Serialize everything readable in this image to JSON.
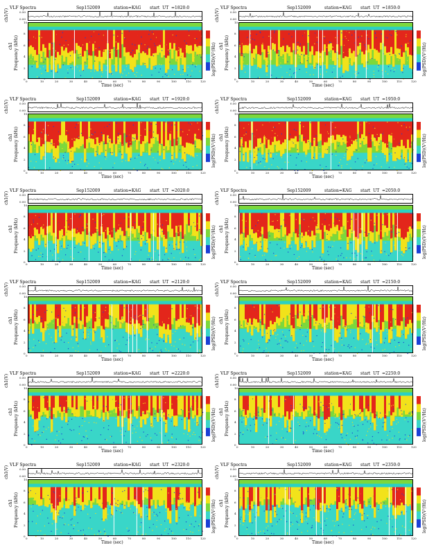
{
  "chart_data": [
    {
      "type": "heatmap",
      "title": "VLF Spectra",
      "date": "Sep152009",
      "station": "station=KAG",
      "start_ut": "start  UT  =1820:0",
      "top_ylabel": "ch1(V)",
      "top_ticks": [
        "0.00",
        "0.50"
      ],
      "ylabel": "Frequency  (kHz)",
      "ylabel_ch": "ch1",
      "xlabel": "Time  (sec)",
      "x_ticks": [
        "0",
        "10",
        "20",
        "30",
        "40",
        "50",
        "60",
        "70",
        "80",
        "90",
        "100",
        "110",
        "120"
      ],
      "y_ticks": [
        "0",
        "2",
        "4",
        "6",
        "8",
        "10"
      ],
      "colorbar_label": "log(PSD)(V²/Hz)"
    },
    {
      "type": "heatmap",
      "title": "VLF Spectra",
      "date": "Sep152009",
      "station": "station=KAG",
      "start_ut": "start  UT  =1850:0",
      "top_ylabel": "ch1(V)",
      "top_ticks": [
        "0.00",
        "0.50"
      ],
      "ylabel": "Frequency  (kHz)",
      "ylabel_ch": "ch1",
      "xlabel": "Time  (sec)",
      "x_ticks": [
        "0",
        "10",
        "20",
        "30",
        "40",
        "50",
        "60",
        "70",
        "80",
        "90",
        "100",
        "110",
        "120"
      ],
      "y_ticks": [
        "0",
        "2",
        "4",
        "6",
        "8",
        "10"
      ],
      "colorbar_label": "log(PSD)(V²/Hz)"
    },
    {
      "type": "heatmap",
      "title": "VLF Spectra",
      "date": "Sep152009",
      "station": "station=KAG",
      "start_ut": "start  UT  =1920:0",
      "top_ylabel": "ch1(V)",
      "top_ticks": [
        "0.00",
        "0.50"
      ],
      "ylabel": "Frequency  (kHz)",
      "ylabel_ch": "ch1",
      "xlabel": "Time  (sec)",
      "x_ticks": [
        "0",
        "10",
        "20",
        "30",
        "40",
        "50",
        "60",
        "70",
        "80",
        "90",
        "100",
        "110",
        "120"
      ],
      "y_ticks": [
        "0",
        "2",
        "4",
        "6",
        "8",
        "10"
      ],
      "colorbar_label": "log(PSD)(V²/Hz)"
    },
    {
      "type": "heatmap",
      "title": "VLF Spectra",
      "date": "Sep152009",
      "station": "station=KAG",
      "start_ut": "start  UT  =1950:0",
      "top_ylabel": "ch1(V)",
      "top_ticks": [
        "0.00",
        "0.50"
      ],
      "ylabel": "Frequency  (kHz)",
      "ylabel_ch": "ch1",
      "xlabel": "Time  (sec)",
      "x_ticks": [
        "0",
        "10",
        "20",
        "30",
        "40",
        "50",
        "60",
        "70",
        "80",
        "90",
        "100",
        "110",
        "120"
      ],
      "y_ticks": [
        "0",
        "2",
        "4",
        "6",
        "8",
        "10"
      ],
      "colorbar_label": "log(PSD)(V²/Hz)"
    },
    {
      "type": "heatmap",
      "title": "VLF Spectra",
      "date": "Sep152009",
      "station": "station=KAG",
      "start_ut": "start  UT  =2020:0",
      "top_ylabel": "ch1(V)",
      "top_ticks": [
        "0.00",
        "0.50"
      ],
      "ylabel": "Frequency  (kHz)",
      "ylabel_ch": "ch1",
      "xlabel": "Time  (sec)",
      "x_ticks": [
        "0",
        "10",
        "20",
        "30",
        "40",
        "50",
        "60",
        "70",
        "80",
        "90",
        "100",
        "110",
        "120"
      ],
      "y_ticks": [
        "0",
        "2",
        "4",
        "6",
        "8",
        "10"
      ],
      "colorbar_label": "log(PSD)(V²/Hz)"
    },
    {
      "type": "heatmap",
      "title": "VLF Spectra",
      "date": "Sep152009",
      "station": "station=KAG",
      "start_ut": "start  UT  =2050:0",
      "top_ylabel": "ch1(V)",
      "top_ticks": [
        "0.00",
        "0.50"
      ],
      "ylabel": "Frequency  (kHz)",
      "ylabel_ch": "ch1",
      "xlabel": "Time  (sec)",
      "x_ticks": [
        "0",
        "10",
        "20",
        "30",
        "40",
        "50",
        "60",
        "70",
        "80",
        "90",
        "100",
        "110",
        "120"
      ],
      "y_ticks": [
        "0",
        "2",
        "4",
        "6",
        "8",
        "10"
      ],
      "colorbar_label": "log(PSD)(V²/Hz)"
    },
    {
      "type": "heatmap",
      "title": "VLF Spectra",
      "date": "Sep152009",
      "station": "station=KAG",
      "start_ut": "start  UT  =2120:0",
      "top_ylabel": "ch1(V)",
      "top_ticks": [
        "0.00",
        "0.50"
      ],
      "ylabel": "Frequency  (kHz)",
      "ylabel_ch": "ch1",
      "xlabel": "Time  (sec)",
      "x_ticks": [
        "0",
        "10",
        "20",
        "30",
        "40",
        "50",
        "60",
        "70",
        "80",
        "90",
        "100",
        "110",
        "120"
      ],
      "y_ticks": [
        "0",
        "2",
        "4",
        "6",
        "8",
        "10"
      ],
      "colorbar_label": "log(PSD)(V²/Hz)"
    },
    {
      "type": "heatmap",
      "title": "VLF Spectra",
      "date": "Sep152009",
      "station": "station=KAG",
      "start_ut": "start  UT  =2150:0",
      "top_ylabel": "ch1(V)",
      "top_ticks": [
        "0.00",
        "0.50"
      ],
      "ylabel": "Frequency  (kHz)",
      "ylabel_ch": "ch1",
      "xlabel": "Time  (sec)",
      "x_ticks": [
        "0",
        "10",
        "20",
        "30",
        "40",
        "50",
        "60",
        "70",
        "80",
        "90",
        "100",
        "110",
        "120"
      ],
      "y_ticks": [
        "0",
        "2",
        "4",
        "6",
        "8",
        "10"
      ],
      "colorbar_label": "log(PSD)(V²/Hz)"
    },
    {
      "type": "heatmap",
      "title": "VLF Spectra",
      "date": "Sep152009",
      "station": "station=KAG",
      "start_ut": "start  UT  =2220:0",
      "top_ylabel": "ch1(V)",
      "top_ticks": [
        "0.00",
        "0.50"
      ],
      "ylabel": "Frequency  (kHz)",
      "ylabel_ch": "ch1",
      "xlabel": "Time  (sec)",
      "x_ticks": [
        "0",
        "10",
        "20",
        "30",
        "40",
        "50",
        "60",
        "70",
        "80",
        "90",
        "100",
        "110",
        "120"
      ],
      "y_ticks": [
        "0",
        "2",
        "4",
        "6",
        "8",
        "10"
      ],
      "colorbar_label": "log(PSD)(V²/Hz)"
    },
    {
      "type": "heatmap",
      "title": "VLF Spectra",
      "date": "Sep152009",
      "station": "station=KAG",
      "start_ut": "start  UT  =2250:0",
      "top_ylabel": "ch1(V)",
      "top_ticks": [
        "0.00",
        "0.50"
      ],
      "ylabel": "Frequency  (kHz)",
      "ylabel_ch": "ch1",
      "xlabel": "Time  (sec)",
      "x_ticks": [
        "0",
        "10",
        "20",
        "30",
        "40",
        "50",
        "60",
        "70",
        "80",
        "90",
        "100",
        "110",
        "120"
      ],
      "y_ticks": [
        "0",
        "2",
        "4",
        "6",
        "8",
        "10"
      ],
      "colorbar_label": "log(PSD)(V²/Hz)"
    },
    {
      "type": "heatmap",
      "title": "VLF Spectra",
      "date": "Sep152009",
      "station": "station=KAG",
      "start_ut": "start  UT  =2320:0",
      "top_ylabel": "ch1(V)",
      "top_ticks": [
        "0.00",
        "0.50"
      ],
      "ylabel": "Frequency  (kHz)",
      "ylabel_ch": "ch1",
      "xlabel": "Time  (sec)",
      "x_ticks": [
        "0",
        "10",
        "20",
        "30",
        "40",
        "50",
        "60",
        "70",
        "80",
        "90",
        "100",
        "110",
        "120"
      ],
      "y_ticks": [
        "0",
        "2",
        "4",
        "6",
        "8",
        "10"
      ],
      "colorbar_label": "log(PSD)(V²/Hz)"
    },
    {
      "type": "heatmap",
      "title": "VLF Spectra",
      "date": "Sep152009",
      "station": "station=KAG",
      "start_ut": "start  UT  =2350:0",
      "top_ylabel": "ch1(V)",
      "top_ticks": [
        "0.00",
        "0.50"
      ],
      "ylabel": "Frequency  (kHz)",
      "ylabel_ch": "ch1",
      "xlabel": "Time  (sec)",
      "x_ticks": [
        "0",
        "10",
        "20",
        "30",
        "40",
        "50",
        "60",
        "70",
        "80",
        "90",
        "100",
        "110",
        "120"
      ],
      "y_ticks": [
        "0",
        "2",
        "4",
        "6",
        "8",
        "10"
      ],
      "colorbar_label": "log(PSD)(V²/Hz)"
    }
  ],
  "x_range": [
    0,
    120
  ],
  "y_range": [
    0,
    10
  ],
  "colors": {
    "low": "#1a3fd6",
    "mid_low": "#39d6c8",
    "mid": "#7cd83c",
    "mid_high": "#f2e21a",
    "high": "#e3261b",
    "band_top": "#2ad1c4"
  }
}
